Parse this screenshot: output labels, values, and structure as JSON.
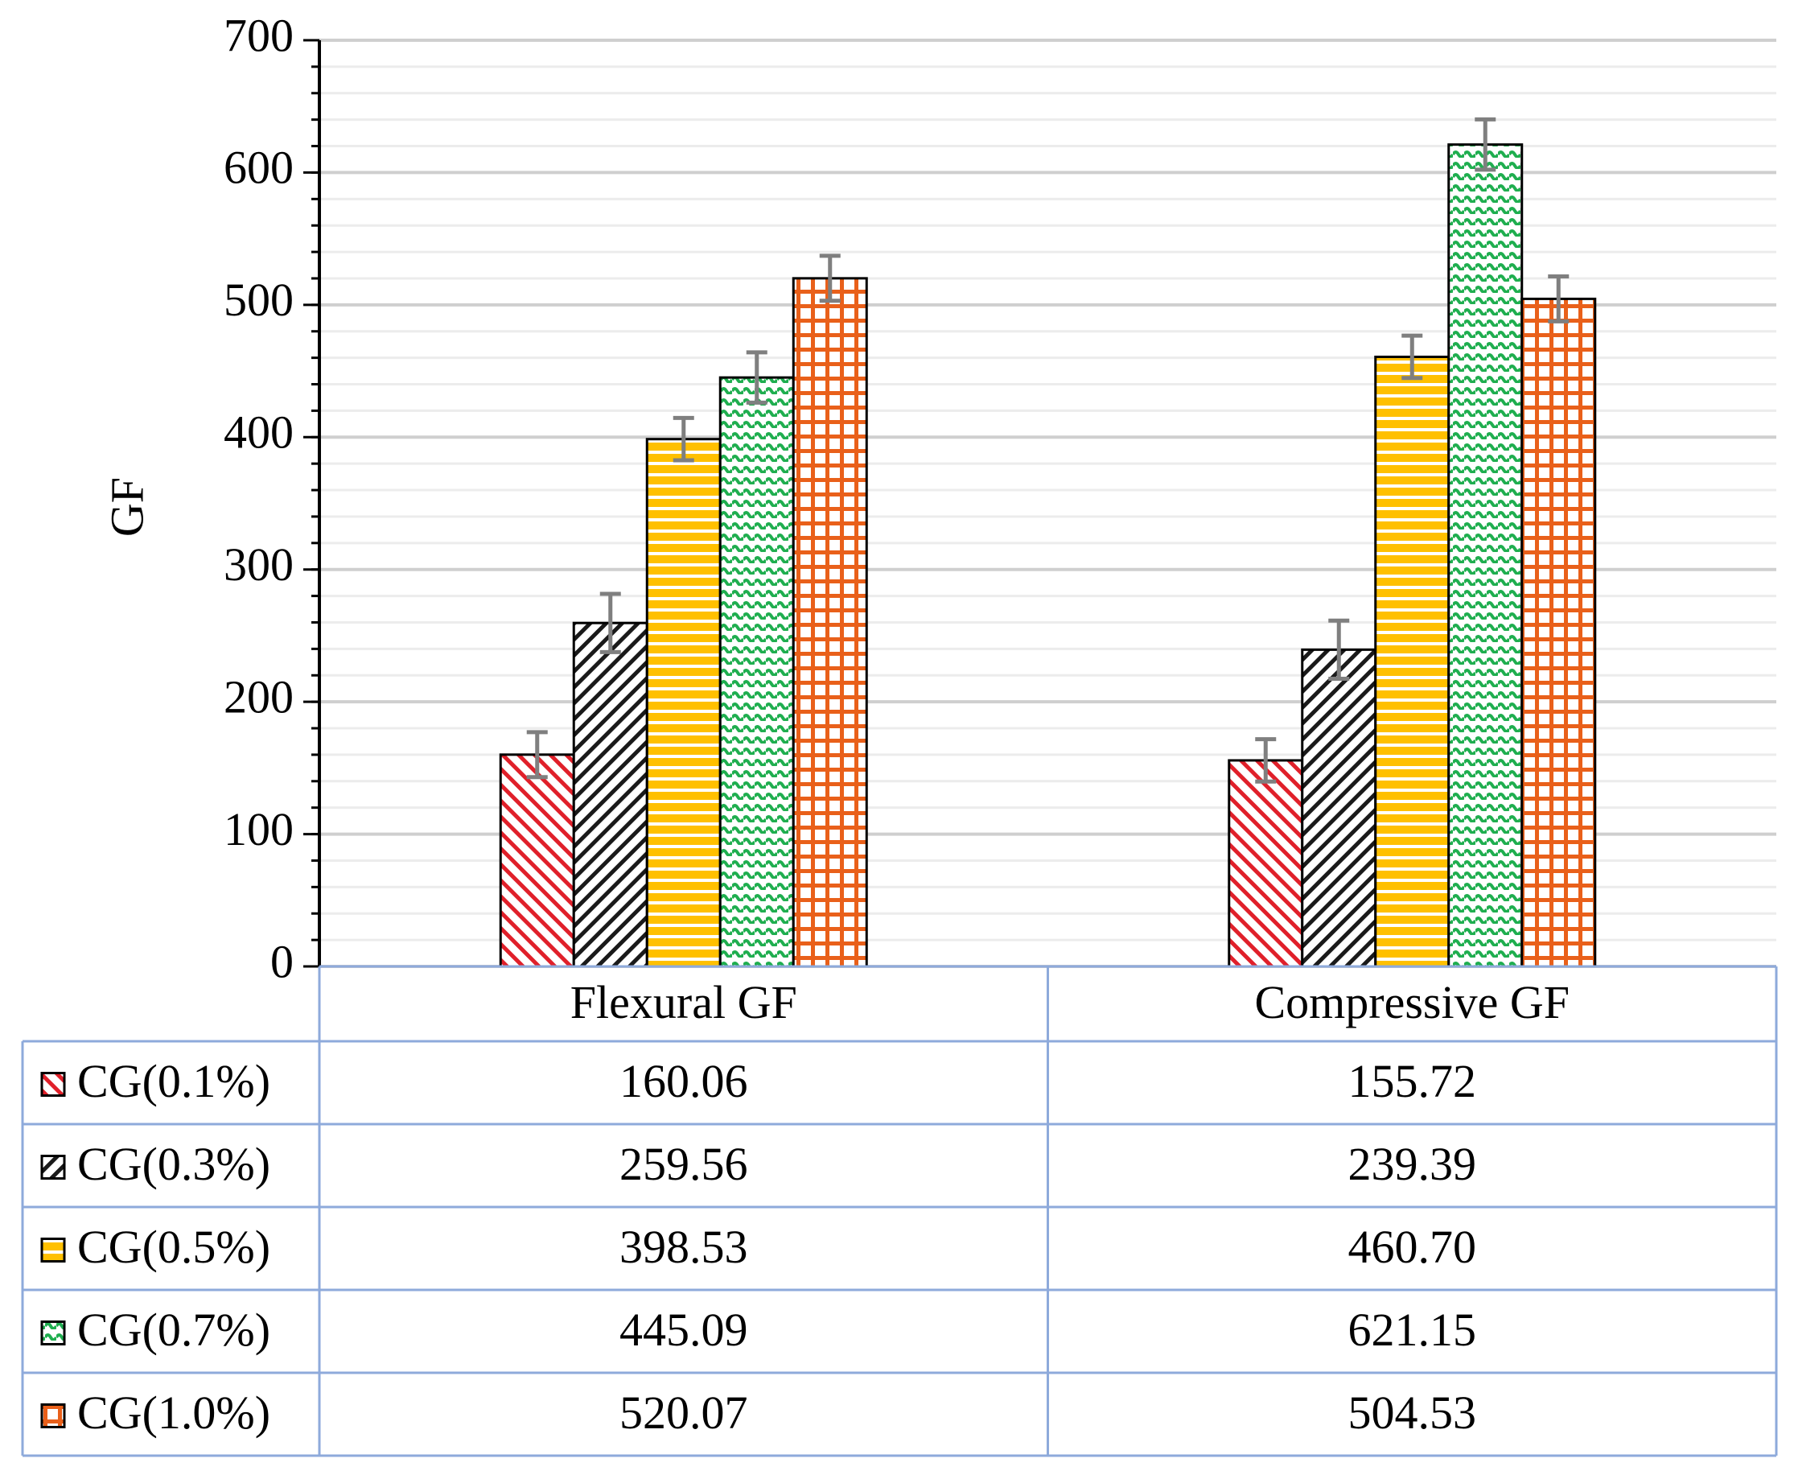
{
  "chart_data": {
    "type": "bar",
    "y_label": "GF",
    "categories": [
      "Flexural GF",
      "Compressive GF"
    ],
    "series": [
      {
        "name": "CG(0.1%)",
        "color": "#e0202a",
        "pattern": "diagonal-down",
        "values": [
          160.06,
          155.72
        ],
        "value_labels": [
          "160.06",
          "155.72"
        ],
        "errors": [
          17,
          16
        ]
      },
      {
        "name": "CG(0.3%)",
        "color": "#1a1a1a",
        "pattern": "diagonal-up",
        "values": [
          259.56,
          239.39
        ],
        "value_labels": [
          "259.56",
          "239.39"
        ],
        "errors": [
          22,
          22
        ]
      },
      {
        "name": "CG(0.5%)",
        "color": "#ffc000",
        "pattern": "horizontal",
        "values": [
          398.53,
          460.7
        ],
        "value_labels": [
          "398.53",
          "460.70"
        ],
        "errors": [
          16,
          16
        ]
      },
      {
        "name": "CG(0.7%)",
        "color": "#1fae4f",
        "pattern": "wave",
        "values": [
          445.09,
          621.15
        ],
        "value_labels": [
          "445.09",
          "621.15"
        ],
        "errors": [
          19,
          19
        ]
      },
      {
        "name": "CG(1.0%)",
        "color": "#e9601a",
        "pattern": "grid",
        "values": [
          520.07,
          504.53
        ],
        "value_labels": [
          "520.07",
          "504.53"
        ],
        "errors": [
          17,
          17
        ]
      }
    ],
    "ylim": [
      0,
      700
    ],
    "yticks": [
      0,
      100,
      200,
      300,
      400,
      500,
      600,
      700
    ],
    "minor_tick_interval": 20,
    "grid": true,
    "data_table": true
  }
}
